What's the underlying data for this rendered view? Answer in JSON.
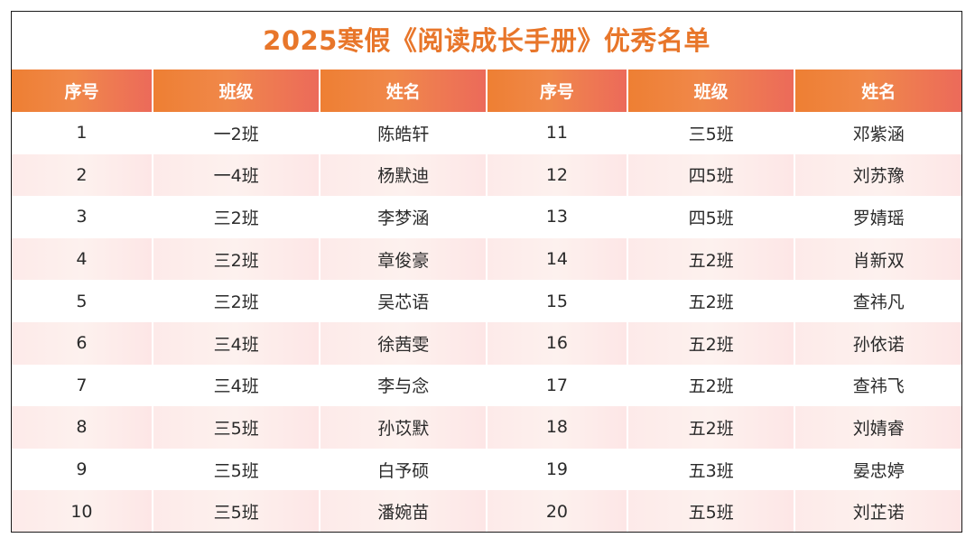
{
  "title": "2025寒假《阅读成长手册》优秀名单",
  "table": {
    "headers": [
      "序号",
      "班级",
      "姓名",
      "序号",
      "班级",
      "姓名"
    ],
    "rows": [
      [
        "1",
        "一2班",
        "陈皓轩",
        "11",
        "三5班",
        "邓紫涵"
      ],
      [
        "2",
        "一4班",
        "杨默迪",
        "12",
        "四5班",
        "刘苏豫"
      ],
      [
        "3",
        "三2班",
        "李梦涵",
        "13",
        "四5班",
        "罗婧瑶"
      ],
      [
        "4",
        "三2班",
        "章俊豪",
        "14",
        "五2班",
        "肖新双"
      ],
      [
        "5",
        "三2班",
        "吴芯语",
        "15",
        "五2班",
        "查祎凡"
      ],
      [
        "6",
        "三4班",
        "徐茜雯",
        "16",
        "五2班",
        "孙依诺"
      ],
      [
        "7",
        "三4班",
        "李与念",
        "17",
        "五2班",
        "查祎飞"
      ],
      [
        "8",
        "三5班",
        "孙苡默",
        "18",
        "五2班",
        "刘婧睿"
      ],
      [
        "9",
        "三5班",
        "白予硕",
        "19",
        "五3班",
        "晏忠婷"
      ],
      [
        "10",
        "三5班",
        "潘婉苗",
        "20",
        "五5班",
        "刘芷诺"
      ]
    ]
  },
  "colors": {
    "title": "#e8762a",
    "header_start": "#ee7f33",
    "header_end": "#ec6a5a",
    "stripe": "#fdeae9"
  }
}
